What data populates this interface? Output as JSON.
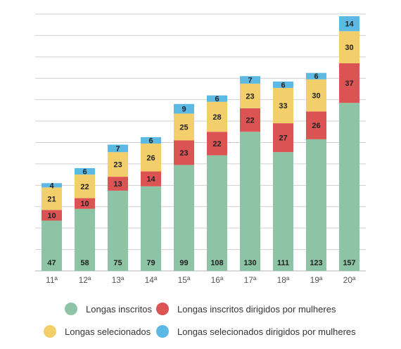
{
  "chart_data": {
    "type": "bar",
    "stacked": true,
    "title": "",
    "xlabel": "",
    "ylabel": "",
    "categories": [
      "11ª",
      "12ª",
      "13ª",
      "14ª",
      "15ª",
      "16ª",
      "17ª",
      "18ª",
      "19ª",
      "20ª"
    ],
    "series": [
      {
        "name": "Longas inscritos",
        "color": "#8dc4a6",
        "values": [
          47,
          58,
          75,
          79,
          99,
          108,
          130,
          111,
          123,
          157
        ]
      },
      {
        "name": "Longas inscritos dirigidos por mulheres",
        "color": "#db5353",
        "values": [
          10,
          10,
          13,
          14,
          23,
          22,
          22,
          27,
          26,
          37
        ]
      },
      {
        "name": "Longas selecionados",
        "color": "#f2cf6a",
        "values": [
          21,
          22,
          23,
          26,
          25,
          28,
          23,
          33,
          30,
          30
        ]
      },
      {
        "name": "Longas selecionados dirigidos por mulheres",
        "color": "#5cb9e3",
        "values": [
          4,
          6,
          7,
          6,
          9,
          6,
          7,
          6,
          6,
          14
        ]
      }
    ],
    "ylim": [
      0,
      240
    ],
    "grid": true,
    "legend_position": "bottom"
  }
}
